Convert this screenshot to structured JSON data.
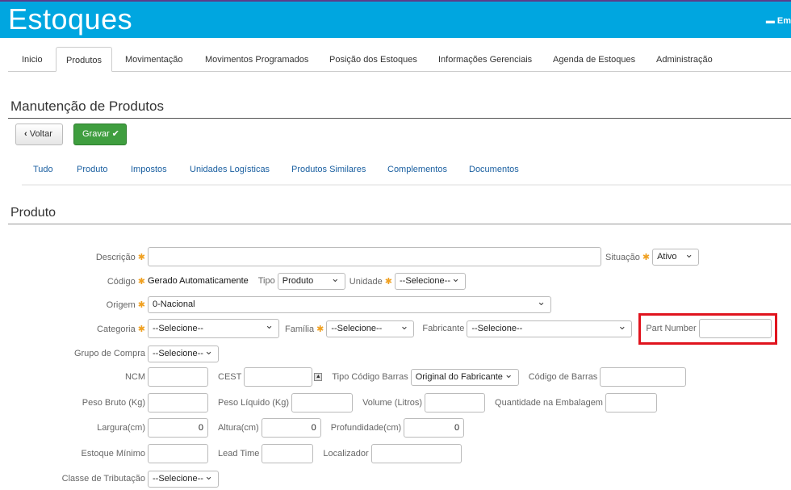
{
  "header": {
    "title": "Estoques",
    "user_label": "Em",
    "user_icon": "briefcase-icon"
  },
  "nav": [
    "Inicio",
    "Produtos",
    "Movimentação",
    "Movimentos Programados",
    "Posição dos Estoques",
    "Informações Gerenciais",
    "Agenda de Estoques",
    "Administração"
  ],
  "nav_active": "Produtos",
  "page_title": "Manutenção de Produtos",
  "buttons": {
    "back": "Voltar",
    "save": "Gravar",
    "save_color": "#3a9a3a"
  },
  "subtabs": [
    "Tudo",
    "Produto",
    "Impostos",
    "Unidades Logísticas",
    "Produtos Similares",
    "Complementos",
    "Documentos"
  ],
  "section_title": "Produto",
  "form": {
    "descricao": {
      "label": "Descrição",
      "value": ""
    },
    "situacao": {
      "label": "Situação",
      "value": "Ativo"
    },
    "codigo": {
      "label": "Código",
      "value": "Gerado Automaticamente"
    },
    "tipo": {
      "label": "Tipo",
      "value": "Produto"
    },
    "unidade": {
      "label": "Unidade",
      "value": "--Selecione--"
    },
    "origem": {
      "label": "Origem",
      "value": "0-Nacional"
    },
    "categoria": {
      "label": "Categoria",
      "value": "--Selecione--"
    },
    "familia": {
      "label": "Família",
      "value": "--Selecione--"
    },
    "fabricante": {
      "label": "Fabricante",
      "value": "--Selecione--"
    },
    "part_number": {
      "label": "Part Number",
      "value": ""
    },
    "grupo_compra": {
      "label": "Grupo de Compra",
      "value": "--Selecione--"
    },
    "ncm": {
      "label": "NCM",
      "value": ""
    },
    "cest": {
      "label": "CEST",
      "value": ""
    },
    "tipo_codigo_barras": {
      "label": "Tipo Código Barras",
      "value": "Original do Fabricante"
    },
    "codigo_barras": {
      "label": "Código de Barras",
      "value": ""
    },
    "peso_bruto": {
      "label": "Peso Bruto (Kg)",
      "value": ""
    },
    "peso_liquido": {
      "label": "Peso Líquido (Kg)",
      "value": ""
    },
    "volume": {
      "label": "Volume (Litros)",
      "value": ""
    },
    "qtd_embalagem": {
      "label": "Quantidade na Embalagem",
      "value": ""
    },
    "largura": {
      "label": "Largura(cm)",
      "value": "0"
    },
    "altura": {
      "label": "Altura(cm)",
      "value": "0"
    },
    "profundidade": {
      "label": "Profundidade(cm)",
      "value": "0"
    },
    "estoque_minimo": {
      "label": "Estoque Mínimo",
      "value": ""
    },
    "lead_time": {
      "label": "Lead Time",
      "value": ""
    },
    "localizador": {
      "label": "Localizador",
      "value": ""
    },
    "classe_tributacao": {
      "label": "Classe de Tributação",
      "value": "--Selecione--"
    }
  },
  "required_marker": "✱"
}
